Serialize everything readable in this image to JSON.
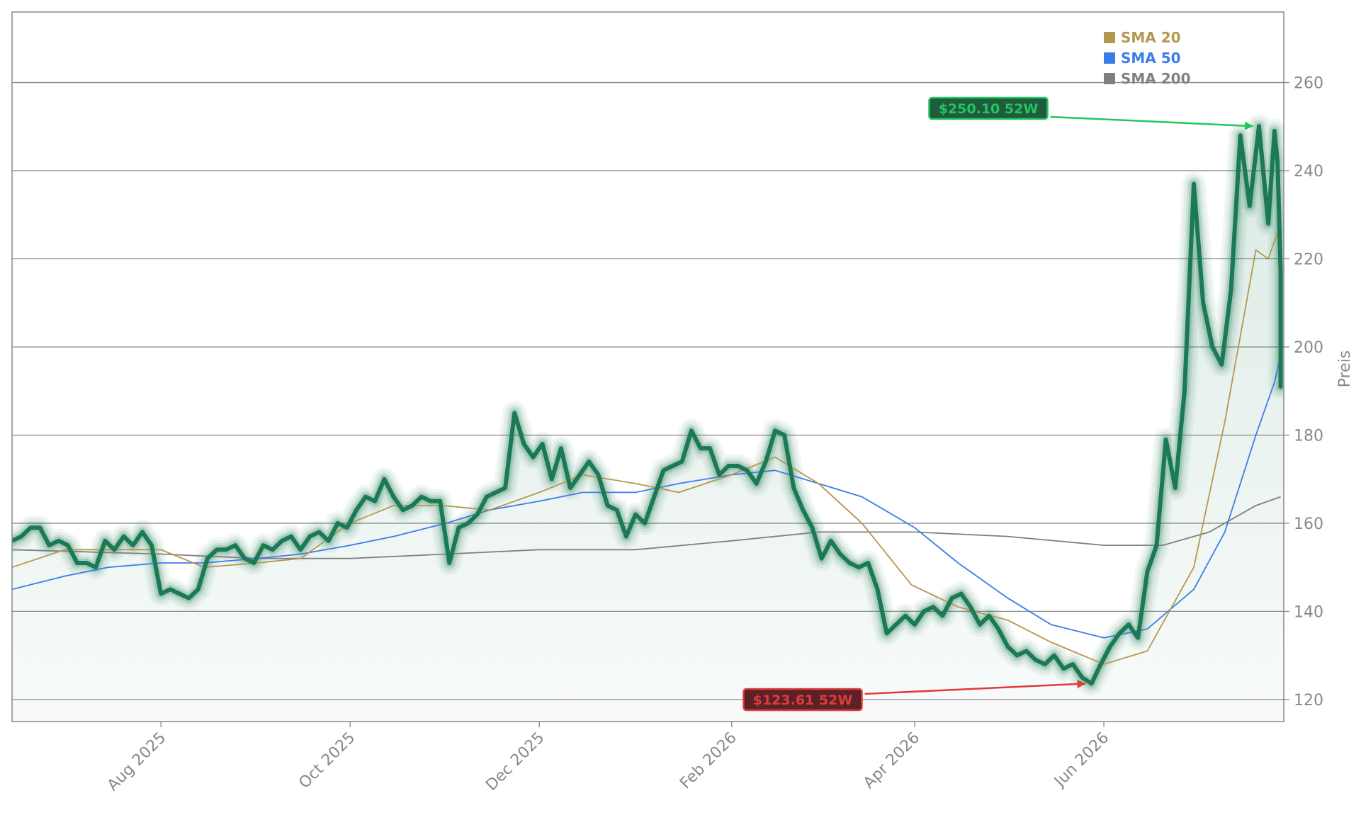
{
  "chart_data": {
    "type": "line",
    "title": "",
    "xlabel": "",
    "ylabel": "Preis",
    "ylim": [
      115,
      276
    ],
    "xlim": [
      "2025-06-14",
      "2026-07-29"
    ],
    "grid": "horizontal",
    "legend_position": "top-right",
    "y_ticks": [
      120,
      140,
      160,
      180,
      200,
      220,
      240,
      260
    ],
    "x_ticks": [
      {
        "date": "2025-08-01",
        "label": "Aug 2025"
      },
      {
        "date": "2025-10-01",
        "label": "Oct 2025"
      },
      {
        "date": "2025-12-01",
        "label": "Dec 2025"
      },
      {
        "date": "2026-02-01",
        "label": "Feb 2026"
      },
      {
        "date": "2026-04-01",
        "label": "Apr 2026"
      },
      {
        "date": "2026-06-01",
        "label": "Jun 2026"
      }
    ],
    "colors": {
      "price": "#1b7a55",
      "sma20": "#b5974f",
      "sma50": "#3b7de8",
      "sma200": "#808080",
      "high": "#22c55e",
      "low": "#e03b3b"
    },
    "legend": [
      {
        "label": "SMA 20",
        "color": "#b5974f"
      },
      {
        "label": "SMA 50",
        "color": "#3b7de8"
      },
      {
        "label": "SMA 200",
        "color": "#808080"
      }
    ],
    "price": [
      [
        "2025-06-14",
        156
      ],
      [
        "2025-06-17",
        157
      ],
      [
        "2025-06-20",
        159
      ],
      [
        "2025-06-23",
        159
      ],
      [
        "2025-06-26",
        155
      ],
      [
        "2025-06-29",
        156
      ],
      [
        "2025-07-02",
        155
      ],
      [
        "2025-07-05",
        151
      ],
      [
        "2025-07-08",
        151
      ],
      [
        "2025-07-11",
        150
      ],
      [
        "2025-07-14",
        156
      ],
      [
        "2025-07-17",
        154
      ],
      [
        "2025-07-20",
        157
      ],
      [
        "2025-07-23",
        155
      ],
      [
        "2025-07-26",
        158
      ],
      [
        "2025-07-29",
        155
      ],
      [
        "2025-08-01",
        144
      ],
      [
        "2025-08-04",
        145
      ],
      [
        "2025-08-07",
        144
      ],
      [
        "2025-08-10",
        143
      ],
      [
        "2025-08-13",
        145
      ],
      [
        "2025-08-16",
        152
      ],
      [
        "2025-08-19",
        154
      ],
      [
        "2025-08-22",
        154
      ],
      [
        "2025-08-25",
        155
      ],
      [
        "2025-08-28",
        152
      ],
      [
        "2025-08-31",
        151
      ],
      [
        "2025-09-03",
        155
      ],
      [
        "2025-09-06",
        154
      ],
      [
        "2025-09-09",
        156
      ],
      [
        "2025-09-12",
        157
      ],
      [
        "2025-09-15",
        154
      ],
      [
        "2025-09-18",
        157
      ],
      [
        "2025-09-21",
        158
      ],
      [
        "2025-09-24",
        156
      ],
      [
        "2025-09-27",
        160
      ],
      [
        "2025-09-30",
        159
      ],
      [
        "2025-10-03",
        163
      ],
      [
        "2025-10-06",
        166
      ],
      [
        "2025-10-09",
        165
      ],
      [
        "2025-10-12",
        170
      ],
      [
        "2025-10-15",
        166
      ],
      [
        "2025-10-18",
        163
      ],
      [
        "2025-10-21",
        164
      ],
      [
        "2025-10-24",
        166
      ],
      [
        "2025-10-27",
        165
      ],
      [
        "2025-10-30",
        165
      ],
      [
        "2025-11-02",
        151
      ],
      [
        "2025-11-05",
        159
      ],
      [
        "2025-11-08",
        160
      ],
      [
        "2025-11-11",
        162
      ],
      [
        "2025-11-14",
        166
      ],
      [
        "2025-11-17",
        167
      ],
      [
        "2025-11-20",
        168
      ],
      [
        "2025-11-23",
        185
      ],
      [
        "2025-11-26",
        178
      ],
      [
        "2025-11-29",
        175
      ],
      [
        "2025-12-02",
        178
      ],
      [
        "2025-12-05",
        170
      ],
      [
        "2025-12-08",
        177
      ],
      [
        "2025-12-11",
        168
      ],
      [
        "2025-12-14",
        171
      ],
      [
        "2025-12-17",
        174
      ],
      [
        "2025-12-20",
        171
      ],
      [
        "2025-12-23",
        164
      ],
      [
        "2025-12-26",
        163
      ],
      [
        "2025-12-29",
        157
      ],
      [
        "2026-01-01",
        162
      ],
      [
        "2026-01-04",
        160
      ],
      [
        "2026-01-07",
        166
      ],
      [
        "2026-01-10",
        172
      ],
      [
        "2026-01-13",
        173
      ],
      [
        "2026-01-16",
        174
      ],
      [
        "2026-01-19",
        181
      ],
      [
        "2026-01-22",
        177
      ],
      [
        "2026-01-25",
        177
      ],
      [
        "2026-01-28",
        171
      ],
      [
        "2026-01-31",
        173
      ],
      [
        "2026-02-03",
        173
      ],
      [
        "2026-02-06",
        172
      ],
      [
        "2026-02-09",
        169
      ],
      [
        "2026-02-12",
        174
      ],
      [
        "2026-02-15",
        181
      ],
      [
        "2026-02-18",
        180
      ],
      [
        "2026-02-21",
        168
      ],
      [
        "2026-02-24",
        163
      ],
      [
        "2026-02-27",
        159
      ],
      [
        "2026-03-02",
        152
      ],
      [
        "2026-03-05",
        156
      ],
      [
        "2026-03-08",
        153
      ],
      [
        "2026-03-11",
        151
      ],
      [
        "2026-03-14",
        150
      ],
      [
        "2026-03-17",
        151
      ],
      [
        "2026-03-20",
        145
      ],
      [
        "2026-03-23",
        135
      ],
      [
        "2026-03-26",
        137
      ],
      [
        "2026-03-29",
        139
      ],
      [
        "2026-04-01",
        137
      ],
      [
        "2026-04-04",
        140
      ],
      [
        "2026-04-07",
        141
      ],
      [
        "2026-04-10",
        139
      ],
      [
        "2026-04-13",
        143
      ],
      [
        "2026-04-16",
        144
      ],
      [
        "2026-04-19",
        141
      ],
      [
        "2026-04-22",
        137
      ],
      [
        "2026-04-25",
        139
      ],
      [
        "2026-04-28",
        136
      ],
      [
        "2026-05-01",
        132
      ],
      [
        "2026-05-04",
        130
      ],
      [
        "2026-05-07",
        131
      ],
      [
        "2026-05-10",
        129
      ],
      [
        "2026-05-13",
        128
      ],
      [
        "2026-05-16",
        130
      ],
      [
        "2026-05-19",
        127
      ],
      [
        "2026-05-22",
        128
      ],
      [
        "2026-05-25",
        125
      ],
      [
        "2026-05-28",
        123.61
      ],
      [
        "2026-05-31",
        128
      ],
      [
        "2026-06-03",
        132
      ],
      [
        "2026-06-06",
        135
      ],
      [
        "2026-06-09",
        137
      ],
      [
        "2026-06-12",
        134
      ],
      [
        "2026-06-15",
        149
      ],
      [
        "2026-06-18",
        155
      ],
      [
        "2026-06-21",
        179
      ],
      [
        "2026-06-24",
        168
      ],
      [
        "2026-06-27",
        190
      ],
      [
        "2026-06-30",
        237
      ],
      [
        "2026-07-03",
        210
      ],
      [
        "2026-07-06",
        200
      ],
      [
        "2026-07-09",
        196
      ],
      [
        "2026-07-12",
        213
      ],
      [
        "2026-07-15",
        248
      ],
      [
        "2026-07-18",
        232
      ],
      [
        "2026-07-21",
        250.1
      ],
      [
        "2026-07-24",
        228
      ],
      [
        "2026-07-26",
        249
      ],
      [
        "2026-07-27",
        242
      ],
      [
        "2026-07-28",
        217
      ],
      [
        "2026-07-28",
        191
      ]
    ],
    "sma20": [
      [
        "2025-06-14",
        150
      ],
      [
        "2025-07-01",
        154
      ],
      [
        "2025-07-15",
        154
      ],
      [
        "2025-08-01",
        154
      ],
      [
        "2025-08-15",
        150
      ],
      [
        "2025-09-01",
        151
      ],
      [
        "2025-09-15",
        152
      ],
      [
        "2025-10-01",
        160
      ],
      [
        "2025-10-15",
        164
      ],
      [
        "2025-10-31",
        164
      ],
      [
        "2025-11-15",
        163
      ],
      [
        "2025-12-01",
        167
      ],
      [
        "2025-12-15",
        171
      ],
      [
        "2026-01-01",
        169
      ],
      [
        "2026-01-15",
        167
      ],
      [
        "2026-02-01",
        171
      ],
      [
        "2026-02-15",
        175
      ],
      [
        "2026-03-01",
        169
      ],
      [
        "2026-03-15",
        160
      ],
      [
        "2026-03-31",
        146
      ],
      [
        "2026-04-15",
        141
      ],
      [
        "2026-05-01",
        138
      ],
      [
        "2026-05-15",
        133
      ],
      [
        "2026-06-01",
        128
      ],
      [
        "2026-06-15",
        131
      ],
      [
        "2026-06-30",
        150
      ],
      [
        "2026-07-10",
        183
      ],
      [
        "2026-07-20",
        222
      ],
      [
        "2026-07-24",
        220
      ],
      [
        "2026-07-27",
        226
      ],
      [
        "2026-07-28",
        217
      ]
    ],
    "sma50": [
      [
        "2025-06-14",
        145
      ],
      [
        "2025-07-01",
        148
      ],
      [
        "2025-07-15",
        150
      ],
      [
        "2025-08-01",
        151
      ],
      [
        "2025-08-15",
        151
      ],
      [
        "2025-09-01",
        152
      ],
      [
        "2025-09-15",
        153
      ],
      [
        "2025-10-01",
        155
      ],
      [
        "2025-10-15",
        157
      ],
      [
        "2025-11-01",
        160
      ],
      [
        "2025-11-15",
        163
      ],
      [
        "2025-12-01",
        165
      ],
      [
        "2025-12-15",
        167
      ],
      [
        "2026-01-01",
        167
      ],
      [
        "2026-01-15",
        169
      ],
      [
        "2026-02-01",
        171
      ],
      [
        "2026-02-15",
        172
      ],
      [
        "2026-03-01",
        169
      ],
      [
        "2026-03-15",
        166
      ],
      [
        "2026-04-01",
        159
      ],
      [
        "2026-04-15",
        151
      ],
      [
        "2026-05-01",
        143
      ],
      [
        "2026-05-15",
        137
      ],
      [
        "2026-06-01",
        134
      ],
      [
        "2026-06-15",
        136
      ],
      [
        "2026-06-30",
        145
      ],
      [
        "2026-07-10",
        158
      ],
      [
        "2026-07-20",
        180
      ],
      [
        "2026-07-26",
        192
      ],
      [
        "2026-07-28",
        198
      ]
    ],
    "sma200": [
      [
        "2025-06-14",
        154
      ],
      [
        "2025-08-01",
        153
      ],
      [
        "2025-09-01",
        152
      ],
      [
        "2025-10-01",
        152
      ],
      [
        "2025-11-01",
        153
      ],
      [
        "2025-12-01",
        154
      ],
      [
        "2026-01-01",
        154
      ],
      [
        "2026-02-01",
        156
      ],
      [
        "2026-03-01",
        158
      ],
      [
        "2026-04-01",
        158
      ],
      [
        "2026-05-01",
        157
      ],
      [
        "2026-06-01",
        155
      ],
      [
        "2026-06-20",
        155
      ],
      [
        "2026-07-05",
        158
      ],
      [
        "2026-07-20",
        164
      ],
      [
        "2026-07-28",
        166
      ]
    ],
    "annotations": [
      {
        "label": "$250.10 52W",
        "date": "2026-07-21",
        "value": 250.1,
        "kind": "high"
      },
      {
        "label": "$123.61 52W",
        "date": "2026-05-28",
        "value": 123.61,
        "kind": "low"
      }
    ]
  }
}
